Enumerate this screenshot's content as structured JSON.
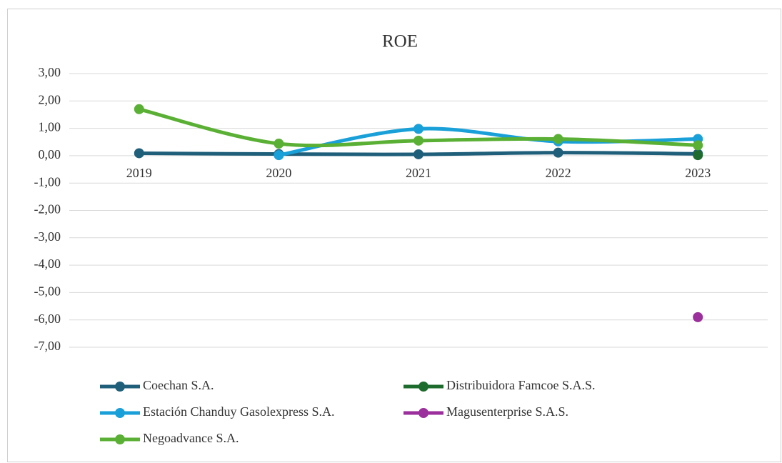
{
  "chart_data": {
    "type": "line",
    "title": "ROE",
    "categories": [
      "2019",
      "2020",
      "2021",
      "2022",
      "2023"
    ],
    "series": [
      {
        "name": "Coechan S.A.",
        "color": "#205f7a",
        "values": [
          0.09,
          0.06,
          0.05,
          0.11,
          0.07
        ]
      },
      {
        "name": "Distribuidora Famcoe S.A.S.",
        "color": "#1e6b2e",
        "values": [
          null,
          null,
          null,
          null,
          0.02
        ]
      },
      {
        "name": "Estación Chanduy Gasolexpress S.A.",
        "color": "#1aa0d8",
        "values": [
          null,
          0.02,
          0.98,
          0.52,
          0.61
        ]
      },
      {
        "name": "Magusenterprise S.A.S.",
        "color": "#9b2f9b",
        "values": [
          null,
          null,
          null,
          null,
          -5.9
        ]
      },
      {
        "name": "Negoadvance S.A.",
        "color": "#5ab034",
        "values": [
          1.7,
          0.44,
          0.55,
          0.61,
          0.38
        ]
      }
    ],
    "ylim": [
      -7,
      3
    ],
    "yticks": [
      {
        "value": 3,
        "label": "3,00"
      },
      {
        "value": 2,
        "label": "2,00"
      },
      {
        "value": 1,
        "label": "1,00"
      },
      {
        "value": 0,
        "label": "0,00"
      },
      {
        "value": -1,
        "label": "-1,00"
      },
      {
        "value": -2,
        "label": "-2,00"
      },
      {
        "value": -3,
        "label": "-3,00"
      },
      {
        "value": -4,
        "label": "-4,00"
      },
      {
        "value": -5,
        "label": "-5,00"
      },
      {
        "value": -6,
        "label": "-6,00"
      },
      {
        "value": -7,
        "label": "-7,00"
      }
    ],
    "grid": true,
    "smooth": true,
    "legend": "bottom"
  }
}
